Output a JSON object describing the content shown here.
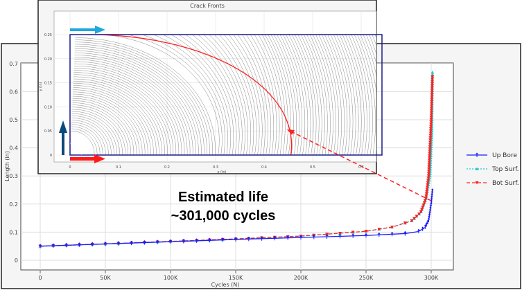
{
  "chart_data": [
    {
      "type": "line",
      "xlabel": "Cycles (N)",
      "ylabel": "Length (in)",
      "xlim": [
        -15000,
        315000
      ],
      "ylim": [
        -0.035,
        0.7
      ],
      "x_ticks": [
        0,
        50000,
        100000,
        150000,
        200000,
        250000,
        300000
      ],
      "x_tick_labels": [
        "0",
        "50K",
        "100K",
        "150K",
        "200K",
        "250K",
        "300K"
      ],
      "y_ticks": [
        0,
        0.1,
        0.2,
        0.3,
        0.4,
        0.5,
        0.6,
        0.7
      ],
      "y_tick_labels": [
        "0",
        "0.1",
        "0.2",
        "0.3",
        "0.4",
        "0.5",
        "0.6",
        "0.7"
      ],
      "grid": true,
      "legend_position": "right",
      "series": [
        {
          "name": "Up Bore",
          "color": "#1a1aff",
          "line": "solid",
          "marker": "arrow-up",
          "x": [
            0,
            50000,
            100000,
            150000,
            200000,
            250000,
            280000,
            290000,
            295000,
            298000,
            300000,
            301000
          ],
          "y": [
            0.05,
            0.058,
            0.066,
            0.074,
            0.081,
            0.088,
            0.095,
            0.102,
            0.115,
            0.14,
            0.2,
            0.25
          ]
        },
        {
          "name": "Top Surf.",
          "color": "#22c8c8",
          "line": "dotted",
          "marker": "triangle-up",
          "x": [
            0,
            50000,
            100000,
            150000,
            200000,
            250000,
            270000,
            285000,
            292000,
            296000,
            299000,
            300500,
            301000
          ],
          "y": [
            0.05,
            0.058,
            0.067,
            0.076,
            0.086,
            0.103,
            0.118,
            0.14,
            0.17,
            0.22,
            0.3,
            0.45,
            0.67
          ]
        },
        {
          "name": "Bot Surf.",
          "color": "#ff2020",
          "line": "dashed",
          "marker": "triangle-down",
          "x": [
            0,
            50000,
            100000,
            150000,
            200000,
            250000,
            270000,
            285000,
            292000,
            296000,
            298000,
            299000,
            300000,
            301000
          ],
          "y": [
            0.05,
            0.058,
            0.067,
            0.076,
            0.086,
            0.103,
            0.118,
            0.14,
            0.17,
            0.22,
            0.3,
            0.4,
            0.5,
            0.66
          ]
        }
      ]
    },
    {
      "type": "line",
      "title": "Crack Fronts",
      "xlabel": "x (in)",
      "ylabel": "y (in)",
      "xlim": [
        -0.033,
        0.65
      ],
      "ylim": [
        -0.015,
        0.29
      ],
      "x_ticks": [
        0,
        0.1,
        0.2,
        0.3,
        0.4,
        0.5,
        0.6
      ],
      "x_tick_labels": [
        "0",
        "0.1",
        "0.2",
        "0.3",
        "0.4",
        "0.5",
        "0.6"
      ],
      "y_ticks": [
        0,
        0.05,
        0.1,
        0.15,
        0.2,
        0.25
      ],
      "y_tick_labels": [
        "0",
        "0.05",
        "0.10",
        "0.15",
        "0.20",
        "0.25"
      ],
      "grid": true,
      "highlighted_front_color": "#ff2020",
      "highlighted_front": {
        "x_at_bottom": 0.455,
        "y_at_bore": 0.212,
        "max_y": 0.247
      }
    }
  ],
  "annotation": {
    "line1": "Estimated life",
    "line2": "~301,000 cycles"
  },
  "colors": {
    "plate_outline": "#1a1a8c",
    "top_arrow": "#1ea8e0",
    "bottom_arrow": "#ff1a1a",
    "bore_arrow": "#0a4a7a",
    "pointer": "#ff2020"
  }
}
